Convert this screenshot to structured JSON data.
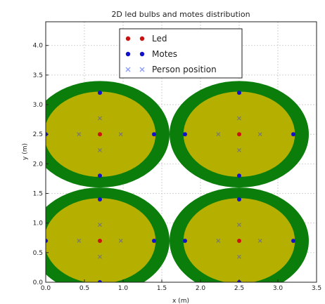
{
  "chart_data": {
    "type": "scatter",
    "title": "2D led bulbs and motes distribution",
    "xlabel": "x (m)",
    "ylabel": "y (m)",
    "xlim": [
      0,
      3.5
    ],
    "ylim": [
      0,
      4.4
    ],
    "xticks": [
      "0.0",
      "0.5",
      "1.0",
      "1.5",
      "2.0",
      "2.5",
      "3.0",
      "3.5"
    ],
    "yticks": [
      "0.0",
      "0.5",
      "1.0",
      "1.5",
      "2.0",
      "2.5",
      "3.0",
      "3.5",
      "4.0"
    ],
    "grid": true,
    "legend_position": "top-center",
    "coverage_circles": [
      {
        "center": [
          0.7,
          2.5
        ],
        "outer_radius": 0.9,
        "inner_radius": 0.72
      },
      {
        "center": [
          2.5,
          2.5
        ],
        "outer_radius": 0.9,
        "inner_radius": 0.72
      },
      {
        "center": [
          0.7,
          0.7
        ],
        "outer_radius": 0.9,
        "inner_radius": 0.72
      },
      {
        "center": [
          2.5,
          0.7
        ],
        "outer_radius": 0.9,
        "inner_radius": 0.72
      }
    ],
    "series": [
      {
        "name": "Led",
        "color": "#cc1111",
        "marker": "dot",
        "x": [
          0.7,
          2.5,
          0.7,
          2.5
        ],
        "y": [
          2.5,
          2.5,
          0.7,
          0.7
        ]
      },
      {
        "name": "Motes",
        "color": "#1111cc",
        "marker": "dot",
        "x": [
          0.0,
          1.4,
          0.7,
          0.7,
          1.8,
          3.2,
          2.5,
          2.5,
          0.0,
          1.4,
          0.7,
          0.7,
          1.8,
          3.2,
          2.5,
          2.5
        ],
        "y": [
          2.5,
          2.5,
          3.2,
          1.8,
          2.5,
          2.5,
          3.2,
          1.8,
          0.7,
          0.7,
          1.4,
          0.0,
          0.7,
          0.7,
          1.4,
          0.0
        ]
      },
      {
        "name": "Person position",
        "color": "#8899ff",
        "marker": "x",
        "x": [
          0.43,
          0.97,
          0.7,
          0.7,
          2.23,
          2.77,
          2.5,
          2.5,
          0.43,
          0.97,
          0.7,
          0.7,
          2.23,
          2.77,
          2.5,
          2.5
        ],
        "y": [
          2.5,
          2.5,
          2.77,
          2.23,
          2.5,
          2.5,
          2.77,
          2.23,
          0.7,
          0.7,
          0.97,
          0.43,
          0.7,
          0.7,
          0.97,
          0.43
        ]
      }
    ],
    "colors": {
      "outer_ring": "#0a7d0a",
      "inner_disc": "#b5b000",
      "grid": "#c8c8c8",
      "person_marker_in_plot": "#777777"
    }
  }
}
